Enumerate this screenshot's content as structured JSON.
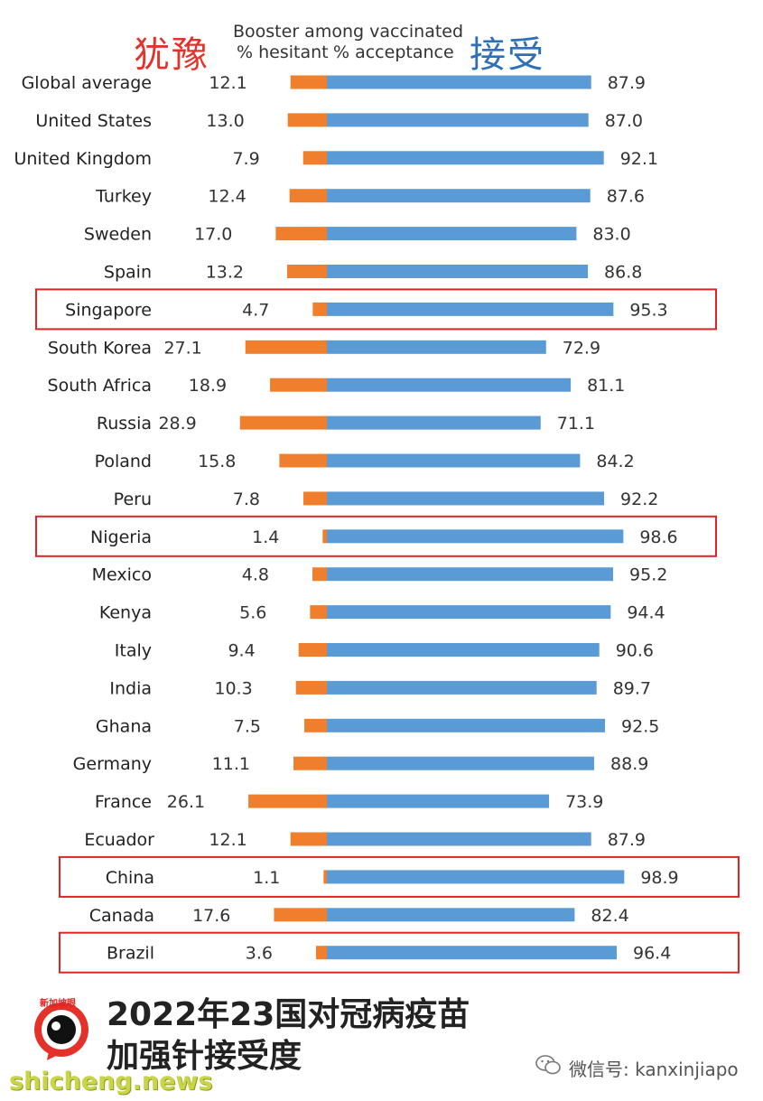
{
  "header": {
    "hesitant_cn": "犹豫",
    "acceptance_cn": "接受",
    "booster_title": "Booster among vaccinated",
    "hesitant_label": "% hesitant",
    "acceptance_label": "% acceptance"
  },
  "colors": {
    "hesitant": "#f07f2d",
    "acceptance": "#5b9bd5",
    "highlight_box": "#e02424"
  },
  "chart_data": {
    "type": "bar",
    "orientation": "horizontal-diverging",
    "categories": [
      "Global average",
      "United States",
      "United Kingdom",
      "Turkey",
      "Sweden",
      "Spain",
      "Singapore",
      "South Korea",
      "South Africa",
      "Russia",
      "Poland",
      "Peru",
      "Nigeria",
      "Mexico",
      "Kenya",
      "Italy",
      "India",
      "Ghana",
      "Germany",
      "France",
      "Ecuador",
      "China",
      "Canada",
      "Brazil"
    ],
    "series": [
      {
        "name": "% hesitant",
        "values": [
          12.1,
          13.0,
          7.9,
          12.4,
          17.0,
          13.2,
          4.7,
          27.1,
          18.9,
          28.9,
          15.8,
          7.8,
          1.4,
          4.8,
          5.6,
          9.4,
          10.3,
          7.5,
          11.1,
          26.1,
          12.1,
          1.1,
          17.6,
          3.6
        ]
      },
      {
        "name": "% acceptance",
        "values": [
          87.9,
          87.0,
          92.1,
          87.6,
          83.0,
          86.8,
          95.3,
          72.9,
          81.1,
          71.1,
          84.2,
          92.2,
          98.6,
          95.2,
          94.4,
          90.6,
          89.7,
          92.5,
          88.9,
          73.9,
          87.9,
          98.9,
          82.4,
          96.4
        ]
      }
    ],
    "highlighted": [
      "Singapore",
      "Nigeria",
      "China",
      "Brazil"
    ],
    "hesitant_labels": [
      "12.1",
      "13.0",
      "7.9",
      "12.4",
      "17.0",
      "13.2",
      "4.7",
      "27.1",
      "18.9",
      "28.9",
      "15.8",
      "7.8",
      "1.4",
      "4.8",
      "5.6",
      "9.4",
      "10.3",
      "7.5",
      "11.1",
      "26.1",
      "12.1",
      "1.1",
      "17.6",
      "3.6"
    ],
    "acceptance_labels": [
      "87.9",
      "87.0",
      "92.1",
      "87.6",
      "83.0",
      "86.8",
      "95.3",
      "72.9",
      "81.1",
      "71.1",
      "84.2",
      "92.2",
      "98.6",
      "95.2",
      "94.4",
      "90.6",
      "89.7",
      "92.5",
      "88.9",
      "73.9",
      "87.9",
      "98.9",
      "82.4",
      "96.4"
    ]
  },
  "footer": {
    "title_line1": "2022年23国对冠病疫苗",
    "title_line2": "加强针接受度",
    "logo_text": "新加坡眼",
    "wechat": "微信号: kanxinjiapo",
    "site": "shicheng.news"
  }
}
